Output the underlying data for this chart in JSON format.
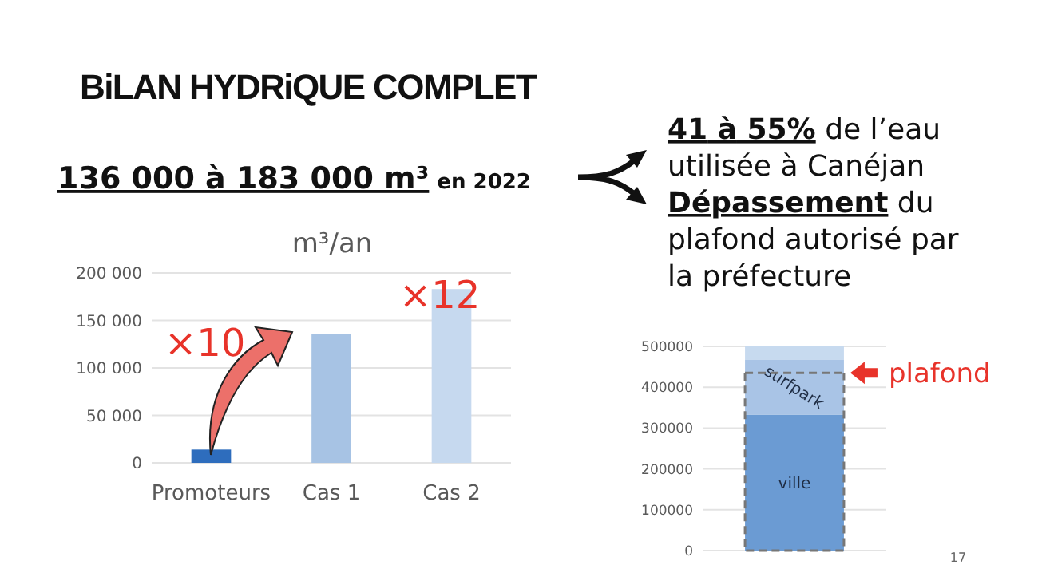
{
  "chart_data": [
    {
      "type": "other",
      "title": "BiLAN HYDRiQUE COMPLET",
      "annotations": [
        "136 000 à 183 000 m³",
        "en 2022",
        "41 à 55%",
        "de l’eau utilisée à Canéjan",
        "Dépassement",
        "du plafond autorisé par la préfecture",
        "17"
      ]
    },
    {
      "type": "bar",
      "title": "m³/an",
      "categories": [
        "Promoteurs",
        "Cas 1",
        "Cas 2"
      ],
      "values": [
        14000,
        136000,
        183000
      ],
      "colors": [
        "#2e6dbd",
        "#a7c3e4",
        "#c6d9ef"
      ],
      "ylim": [
        0,
        200000
      ],
      "yticks": [
        {
          "value": 0,
          "label": "0"
        },
        {
          "value": 50000,
          "label": "50 000"
        },
        {
          "value": 100000,
          "label": "100 000"
        },
        {
          "value": 150000,
          "label": "150 000"
        },
        {
          "value": 200000,
          "label": "200 000"
        }
      ],
      "grid": "y",
      "annotations": [
        "×10",
        "×12"
      ]
    },
    {
      "type": "bar",
      "stacked": true,
      "categories": [
        null
      ],
      "series": [
        {
          "name": "ville",
          "color": "#6b9bd3",
          "values": [
            333000
          ]
        },
        {
          "name": "surfpark",
          "color": "#a9c4e6",
          "values": [
            135000
          ]
        },
        {
          "color": "#c7daef",
          "values": [
            32000
          ]
        }
      ],
      "ylim": [
        0,
        500000
      ],
      "yticks": [
        0,
        100000,
        200000,
        300000,
        400000,
        500000
      ],
      "grid": "y",
      "ref_lines": [
        {
          "axis": "y",
          "value": 435000,
          "label": "plafond",
          "color": "#777777",
          "line_style": "dashed"
        }
      ]
    }
  ]
}
